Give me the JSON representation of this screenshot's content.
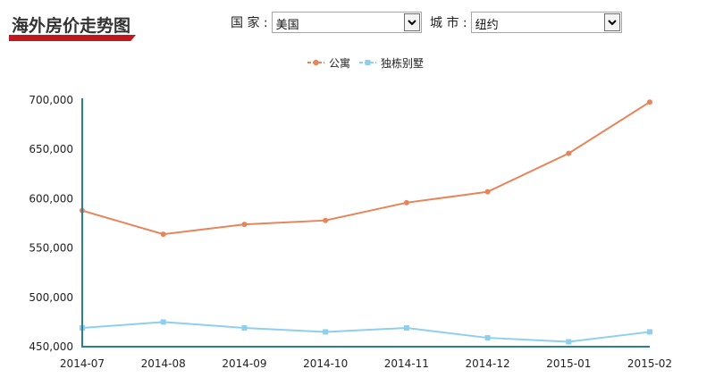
{
  "header": {
    "title": "海外房价走势图"
  },
  "filters": {
    "country": {
      "label": "国 家 :",
      "value": "美国"
    },
    "city": {
      "label": "城 市 :",
      "value": "纽约"
    }
  },
  "colors": {
    "apartment": "#e8845a",
    "villa": "#8ecff0",
    "axis": "#2f7f91",
    "title_bar": "#c0181e"
  },
  "chart_data": {
    "type": "line",
    "categories": [
      "2014-07",
      "2014-08",
      "2014-09",
      "2014-10",
      "2014-11",
      "2014-12",
      "2015-01",
      "2015-02"
    ],
    "series": [
      {
        "name": "公寓",
        "values": [
          588000,
          564000,
          574000,
          578000,
          596000,
          607000,
          646000,
          698000
        ]
      },
      {
        "name": "独栋别墅",
        "values": [
          469000,
          475000,
          469000,
          465000,
          469000,
          459000,
          455000,
          465000
        ]
      }
    ],
    "yticks": [
      "700,000",
      "650,000",
      "600,000",
      "550,000",
      "500,000",
      "450,000"
    ],
    "ylim": [
      450000,
      700000
    ],
    "legend_position": "top-center",
    "grid": false
  }
}
